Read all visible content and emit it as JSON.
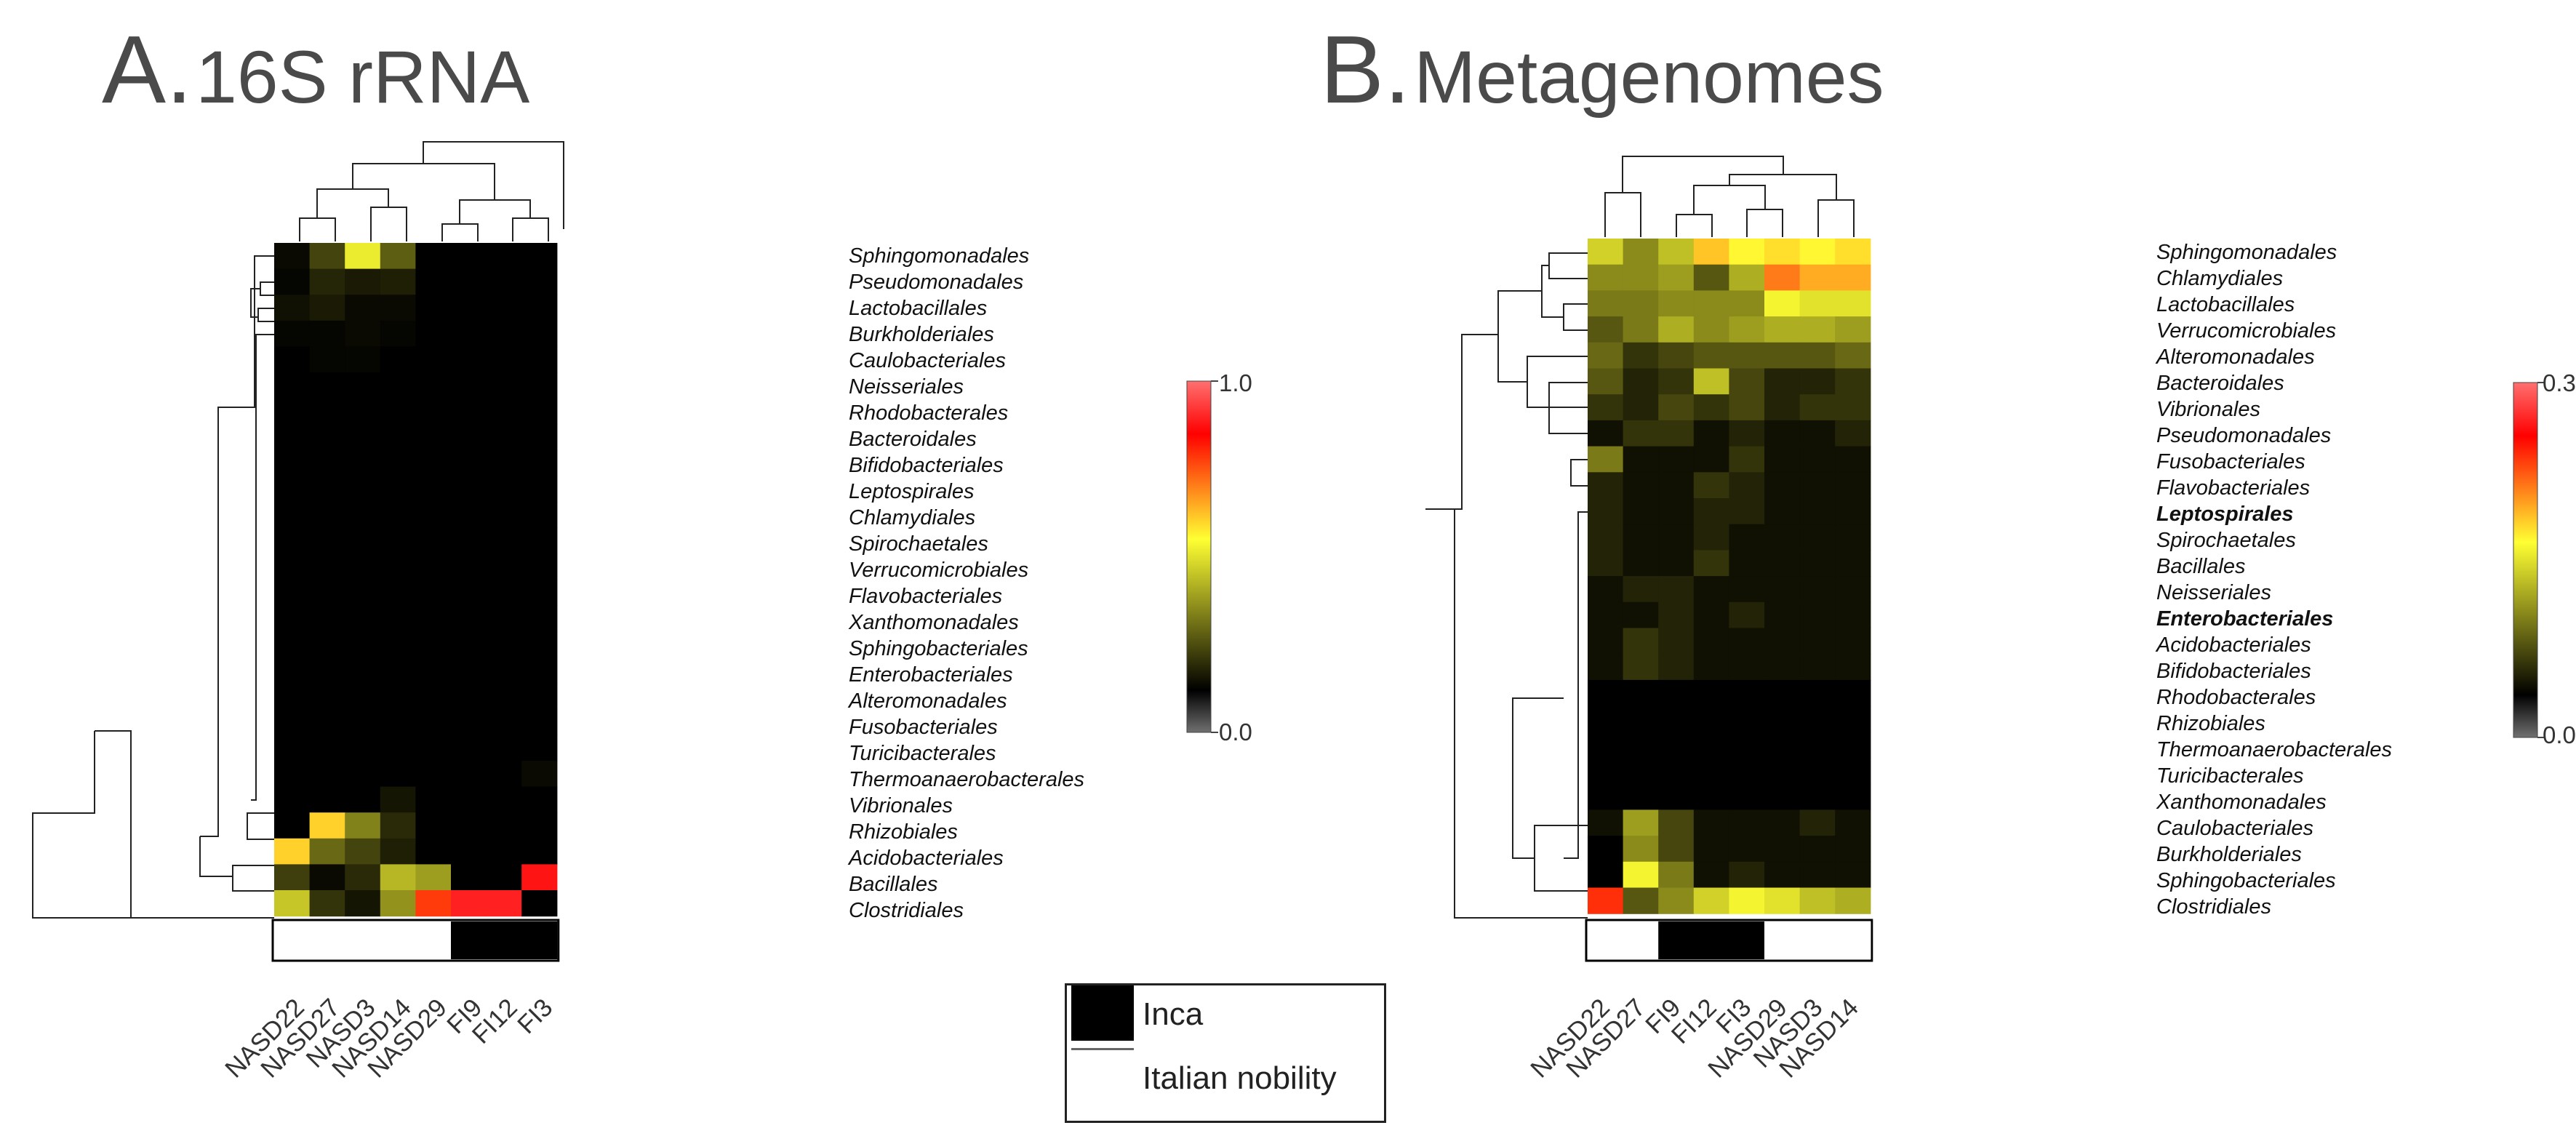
{
  "panels": [
    {
      "letter": "A.",
      "name": "16S rRNA"
    },
    {
      "letter": "B.",
      "name": "Metagenomes"
    }
  ],
  "legend": {
    "items": [
      {
        "label": "Inca",
        "color": "#000000"
      },
      {
        "label": "Italian nobility",
        "color": "#ffffff"
      }
    ]
  },
  "colors": {
    "scale": [
      "#707070",
      "#000000",
      "#ffff33",
      "#ff0000",
      "#ff7070"
    ],
    "group_inca": "#000000",
    "group_italian": "#ffffff"
  },
  "chart_data": [
    {
      "type": "heatmap",
      "title": "16S rRNA",
      "columns": [
        "NASD22",
        "NASD27",
        "NASD3",
        "NASD14",
        "NASD29",
        "FI9",
        "FI12",
        "FI3"
      ],
      "column_groups": [
        "Italian nobility",
        "Italian nobility",
        "Italian nobility",
        "Italian nobility",
        "Italian nobility",
        "Inca",
        "Inca",
        "Inca"
      ],
      "rows": [
        "Sphingomonadales",
        "Pseudomonadales",
        "Lactobacillales",
        "Burkholderiales",
        "Caulobacteriales",
        "Neisseriales",
        "Rhodobacterales",
        "Bacteroidales",
        "Bifidobacteriales",
        "Leptospirales",
        "Chlamydiales",
        "Spirochaetales",
        "Verrucomicrobiales",
        "Flavobacteriales",
        "Xanthomonadales",
        "Sphingobacteriales",
        "Enterobacteriales",
        "Alteromonadales",
        "Fusobacteriales",
        "Turicibacterales",
        "Thermoanaerobacterales",
        "Vibrionales",
        "Rhizobiales",
        "Acidobacteriales",
        "Bacillales",
        "Clostridiales"
      ],
      "bold_rows": [],
      "values": [
        [
          0.02,
          0.13,
          0.45,
          0.18,
          0.0,
          0.0,
          0.0,
          0.0
        ],
        [
          0.01,
          0.07,
          0.05,
          0.06,
          0.0,
          0.0,
          0.0,
          0.0
        ],
        [
          0.03,
          0.05,
          0.02,
          0.02,
          0.0,
          0.0,
          0.0,
          0.0
        ],
        [
          0.01,
          0.01,
          0.02,
          0.01,
          0.0,
          0.0,
          0.0,
          0.0
        ],
        [
          0.0,
          0.01,
          0.01,
          0.0,
          0.0,
          0.0,
          0.0,
          0.0
        ],
        [
          0.0,
          0.0,
          0.0,
          0.0,
          0.0,
          0.0,
          0.0,
          0.0
        ],
        [
          0.0,
          0.0,
          0.0,
          0.0,
          0.0,
          0.0,
          0.0,
          0.0
        ],
        [
          0.0,
          0.0,
          0.0,
          0.0,
          0.0,
          0.0,
          0.0,
          0.0
        ],
        [
          0.0,
          0.0,
          0.0,
          0.0,
          0.0,
          0.0,
          0.0,
          0.0
        ],
        [
          0.0,
          0.0,
          0.0,
          0.0,
          0.0,
          0.0,
          0.0,
          0.0
        ],
        [
          0.0,
          0.0,
          0.0,
          0.0,
          0.0,
          0.0,
          0.0,
          0.0
        ],
        [
          0.0,
          0.0,
          0.0,
          0.0,
          0.0,
          0.0,
          0.0,
          0.0
        ],
        [
          0.0,
          0.0,
          0.0,
          0.0,
          0.0,
          0.0,
          0.0,
          0.0
        ],
        [
          0.0,
          0.0,
          0.0,
          0.0,
          0.0,
          0.0,
          0.0,
          0.0
        ],
        [
          0.0,
          0.0,
          0.0,
          0.0,
          0.0,
          0.0,
          0.0,
          0.0
        ],
        [
          0.0,
          0.0,
          0.0,
          0.0,
          0.0,
          0.0,
          0.0,
          0.0
        ],
        [
          0.0,
          0.0,
          0.0,
          0.0,
          0.0,
          0.0,
          0.0,
          0.0
        ],
        [
          0.0,
          0.0,
          0.0,
          0.0,
          0.0,
          0.0,
          0.0,
          0.0
        ],
        [
          0.0,
          0.0,
          0.0,
          0.0,
          0.0,
          0.0,
          0.0,
          0.0
        ],
        [
          0.0,
          0.0,
          0.0,
          0.0,
          0.0,
          0.0,
          0.0,
          0.0
        ],
        [
          0.0,
          0.0,
          0.0,
          0.0,
          0.0,
          0.0,
          0.0,
          0.02
        ],
        [
          0.0,
          0.0,
          0.0,
          0.04,
          0.0,
          0.0,
          0.0,
          0.0
        ],
        [
          0.0,
          0.55,
          0.25,
          0.08,
          0.0,
          0.0,
          0.0,
          0.0
        ],
        [
          0.55,
          0.2,
          0.13,
          0.06,
          0.0,
          0.0,
          0.0,
          0.0
        ],
        [
          0.12,
          0.02,
          0.08,
          0.35,
          0.3,
          0.0,
          0.0,
          0.86
        ],
        [
          0.38,
          0.1,
          0.04,
          0.28,
          0.75,
          0.88,
          0.88,
          0.0
        ]
      ],
      "colorbar": {
        "min": 0.0,
        "max": 1.0,
        "tick_labels": [
          "1.0",
          "0.0"
        ]
      }
    },
    {
      "type": "heatmap",
      "title": "Metagenomes",
      "columns": [
        "NASD22",
        "NASD27",
        "FI9",
        "FI12",
        "FI3",
        "NASD29",
        "NASD3",
        "NASD14"
      ],
      "column_groups": [
        "Italian nobility",
        "Italian nobility",
        "Inca",
        "Inca",
        "Inca",
        "Italian nobility",
        "Italian nobility",
        "Italian nobility"
      ],
      "rows": [
        "Sphingomonadales",
        "Chlamydiales",
        "Lactobacillales",
        "Verrucomicrobiales",
        "Alteromonadales",
        "Bacteroidales",
        "Vibrionales",
        "Pseudomonadales",
        "Fusobacteriales",
        "Flavobacteriales",
        "Leptospirales",
        "Spirochaetales",
        "Bacillales",
        "Neisseriales",
        "Enterobacteriales",
        "Acidobacteriales",
        "Bifidobacteriales",
        "Rhodobacterales",
        "Rhizobiales",
        "Thermoanaerobacterales",
        "Turicibacterales",
        "Xanthomonadales",
        "Caulobacteriales",
        "Burkholderiales",
        "Sphingobacteriales",
        "Clostridiales"
      ],
      "bold_rows": [
        "Leptospirales",
        "Enterobacteriales"
      ],
      "values": [
        [
          0.12,
          0.08,
          0.11,
          0.17,
          0.15,
          0.16,
          0.15,
          0.16
        ],
        [
          0.08,
          0.08,
          0.09,
          0.05,
          0.1,
          0.2,
          0.18,
          0.18
        ],
        [
          0.07,
          0.07,
          0.08,
          0.08,
          0.08,
          0.14,
          0.13,
          0.13
        ],
        [
          0.05,
          0.07,
          0.1,
          0.08,
          0.09,
          0.1,
          0.1,
          0.09
        ],
        [
          0.06,
          0.03,
          0.04,
          0.05,
          0.05,
          0.05,
          0.05,
          0.06
        ],
        [
          0.05,
          0.02,
          0.03,
          0.11,
          0.04,
          0.02,
          0.02,
          0.03
        ],
        [
          0.03,
          0.02,
          0.04,
          0.03,
          0.04,
          0.02,
          0.03,
          0.03
        ],
        [
          0.01,
          0.03,
          0.03,
          0.01,
          0.02,
          0.01,
          0.01,
          0.02
        ],
        [
          0.07,
          0.01,
          0.01,
          0.01,
          0.03,
          0.01,
          0.01,
          0.01
        ],
        [
          0.02,
          0.01,
          0.01,
          0.03,
          0.02,
          0.01,
          0.01,
          0.01
        ],
        [
          0.02,
          0.01,
          0.01,
          0.02,
          0.02,
          0.01,
          0.01,
          0.01
        ],
        [
          0.02,
          0.01,
          0.01,
          0.02,
          0.01,
          0.01,
          0.01,
          0.01
        ],
        [
          0.02,
          0.01,
          0.01,
          0.03,
          0.01,
          0.01,
          0.01,
          0.01
        ],
        [
          0.01,
          0.02,
          0.02,
          0.01,
          0.01,
          0.01,
          0.01,
          0.01
        ],
        [
          0.01,
          0.01,
          0.02,
          0.01,
          0.02,
          0.01,
          0.01,
          0.01
        ],
        [
          0.01,
          0.03,
          0.02,
          0.01,
          0.01,
          0.01,
          0.01,
          0.01
        ],
        [
          0.01,
          0.03,
          0.02,
          0.01,
          0.01,
          0.01,
          0.01,
          0.01
        ],
        [
          0.0,
          0.0,
          0.0,
          0.0,
          0.0,
          0.0,
          0.0,
          0.0
        ],
        [
          0.0,
          0.0,
          0.0,
          0.0,
          0.0,
          0.0,
          0.0,
          0.0
        ],
        [
          0.0,
          0.0,
          0.0,
          0.0,
          0.0,
          0.0,
          0.0,
          0.0
        ],
        [
          0.0,
          0.0,
          0.0,
          0.0,
          0.0,
          0.0,
          0.0,
          0.0
        ],
        [
          0.0,
          0.0,
          0.0,
          0.0,
          0.0,
          0.0,
          0.0,
          0.0
        ],
        [
          0.01,
          0.09,
          0.04,
          0.01,
          0.01,
          0.01,
          0.02,
          0.01
        ],
        [
          0.0,
          0.08,
          0.04,
          0.01,
          0.01,
          0.01,
          0.01,
          0.01
        ],
        [
          0.0,
          0.14,
          0.07,
          0.01,
          0.02,
          0.01,
          0.01,
          0.01
        ],
        [
          0.23,
          0.05,
          0.08,
          0.12,
          0.14,
          0.13,
          0.11,
          0.1
        ]
      ],
      "colorbar": {
        "min": 0.0,
        "max": 0.3,
        "tick_labels": [
          "0.3",
          "0.0"
        ]
      }
    }
  ]
}
